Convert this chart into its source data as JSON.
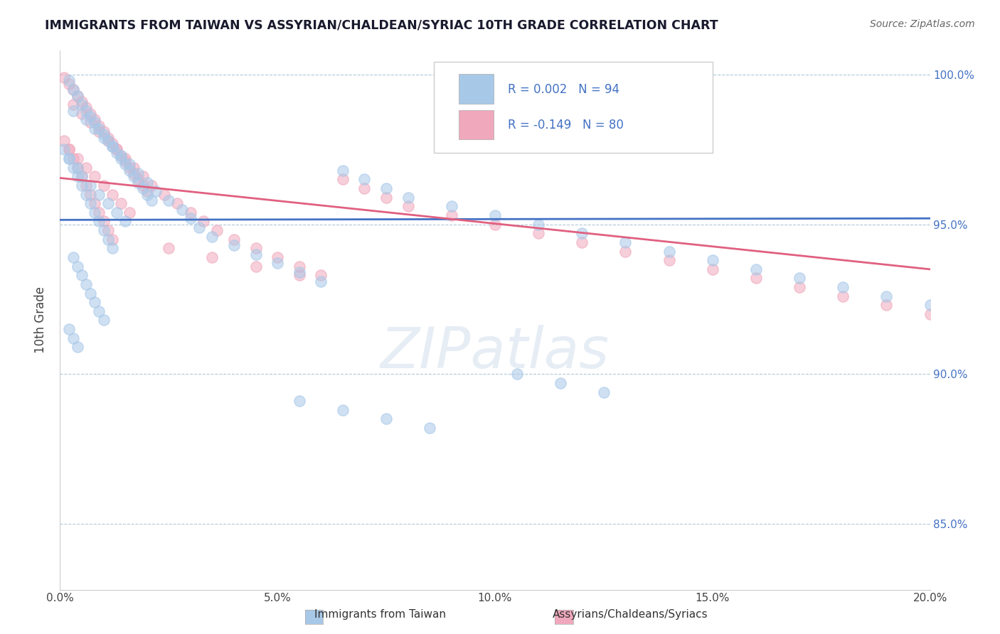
{
  "title": "IMMIGRANTS FROM TAIWAN VS ASSYRIAN/CHALDEAN/SYRIAC 10TH GRADE CORRELATION CHART",
  "source": "Source: ZipAtlas.com",
  "ylabel": "10th Grade",
  "r1": 0.002,
  "n1": 94,
  "r2": -0.149,
  "n2": 80,
  "color_blue": "#a8c8e8",
  "color_pink": "#f0a8bc",
  "color_blue_line": "#4472c4",
  "color_pink_line": "#e06080",
  "legend1": "Immigrants from Taiwan",
  "legend2": "Assyrians/Chaldeans/Syriacs",
  "xlim": [
    0.0,
    0.2
  ],
  "ylim": [
    0.828,
    1.008
  ],
  "y_ticks": [
    0.85,
    0.9,
    0.95,
    1.0
  ],
  "x_ticks": [
    0.0,
    0.05,
    0.1,
    0.15,
    0.2
  ],
  "blue_line_y0": 0.9515,
  "blue_line_y1": 0.952,
  "pink_line_y0": 0.9655,
  "pink_line_y1": 0.935,
  "blue_dots_x": [
    0.002,
    0.003,
    0.004,
    0.005,
    0.006,
    0.007,
    0.008,
    0.009,
    0.01,
    0.011,
    0.012,
    0.013,
    0.014,
    0.015,
    0.016,
    0.017,
    0.018,
    0.019,
    0.02,
    0.021,
    0.002,
    0.004,
    0.005,
    0.007,
    0.009,
    0.011,
    0.013,
    0.015,
    0.003,
    0.006,
    0.008,
    0.01,
    0.012,
    0.014,
    0.016,
    0.018,
    0.02,
    0.022,
    0.025,
    0.028,
    0.03,
    0.032,
    0.035,
    0.04,
    0.045,
    0.05,
    0.055,
    0.06,
    0.065,
    0.07,
    0.075,
    0.08,
    0.09,
    0.1,
    0.11,
    0.12,
    0.13,
    0.14,
    0.15,
    0.16,
    0.17,
    0.18,
    0.19,
    0.2,
    0.001,
    0.002,
    0.003,
    0.004,
    0.005,
    0.006,
    0.007,
    0.008,
    0.009,
    0.01,
    0.011,
    0.012,
    0.003,
    0.004,
    0.005,
    0.006,
    0.007,
    0.008,
    0.009,
    0.01,
    0.002,
    0.003,
    0.004,
    0.105,
    0.115,
    0.125,
    0.055,
    0.065,
    0.075,
    0.085
  ],
  "blue_dots_y": [
    0.998,
    0.995,
    0.993,
    0.99,
    0.988,
    0.986,
    0.984,
    0.982,
    0.98,
    0.978,
    0.976,
    0.974,
    0.972,
    0.97,
    0.968,
    0.966,
    0.964,
    0.962,
    0.96,
    0.958,
    0.972,
    0.969,
    0.966,
    0.963,
    0.96,
    0.957,
    0.954,
    0.951,
    0.988,
    0.985,
    0.982,
    0.979,
    0.976,
    0.973,
    0.97,
    0.967,
    0.964,
    0.961,
    0.958,
    0.955,
    0.952,
    0.949,
    0.946,
    0.943,
    0.94,
    0.937,
    0.934,
    0.931,
    0.968,
    0.965,
    0.962,
    0.959,
    0.956,
    0.953,
    0.95,
    0.947,
    0.944,
    0.941,
    0.938,
    0.935,
    0.932,
    0.929,
    0.926,
    0.923,
    0.975,
    0.972,
    0.969,
    0.966,
    0.963,
    0.96,
    0.957,
    0.954,
    0.951,
    0.948,
    0.945,
    0.942,
    0.939,
    0.936,
    0.933,
    0.93,
    0.927,
    0.924,
    0.921,
    0.918,
    0.915,
    0.912,
    0.909,
    0.9,
    0.897,
    0.894,
    0.891,
    0.888,
    0.885,
    0.882
  ],
  "pink_dots_x": [
    0.001,
    0.002,
    0.003,
    0.004,
    0.005,
    0.006,
    0.007,
    0.008,
    0.009,
    0.01,
    0.011,
    0.012,
    0.013,
    0.014,
    0.015,
    0.016,
    0.017,
    0.018,
    0.019,
    0.02,
    0.002,
    0.004,
    0.006,
    0.008,
    0.01,
    0.012,
    0.014,
    0.016,
    0.003,
    0.005,
    0.007,
    0.009,
    0.011,
    0.013,
    0.015,
    0.017,
    0.019,
    0.021,
    0.024,
    0.027,
    0.03,
    0.033,
    0.036,
    0.04,
    0.045,
    0.05,
    0.055,
    0.06,
    0.065,
    0.07,
    0.075,
    0.08,
    0.09,
    0.1,
    0.11,
    0.12,
    0.13,
    0.14,
    0.15,
    0.16,
    0.17,
    0.18,
    0.19,
    0.2,
    0.001,
    0.002,
    0.003,
    0.004,
    0.005,
    0.006,
    0.007,
    0.008,
    0.009,
    0.01,
    0.011,
    0.012,
    0.025,
    0.035,
    0.045,
    0.055
  ],
  "pink_dots_y": [
    0.999,
    0.997,
    0.995,
    0.993,
    0.991,
    0.989,
    0.987,
    0.985,
    0.983,
    0.981,
    0.979,
    0.977,
    0.975,
    0.973,
    0.971,
    0.969,
    0.967,
    0.965,
    0.963,
    0.961,
    0.975,
    0.972,
    0.969,
    0.966,
    0.963,
    0.96,
    0.957,
    0.954,
    0.99,
    0.987,
    0.984,
    0.981,
    0.978,
    0.975,
    0.972,
    0.969,
    0.966,
    0.963,
    0.96,
    0.957,
    0.954,
    0.951,
    0.948,
    0.945,
    0.942,
    0.939,
    0.936,
    0.933,
    0.965,
    0.962,
    0.959,
    0.956,
    0.953,
    0.95,
    0.947,
    0.944,
    0.941,
    0.938,
    0.935,
    0.932,
    0.929,
    0.926,
    0.923,
    0.92,
    0.978,
    0.975,
    0.972,
    0.969,
    0.966,
    0.963,
    0.96,
    0.957,
    0.954,
    0.951,
    0.948,
    0.945,
    0.942,
    0.939,
    0.936,
    0.933
  ]
}
